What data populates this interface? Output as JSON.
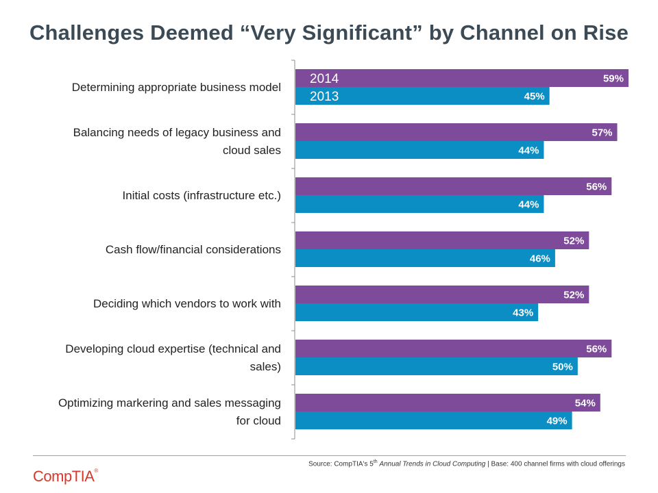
{
  "title": "Challenges Deemed “Very Significant” by Channel on Rise",
  "chart_data": {
    "type": "bar",
    "orientation": "horizontal",
    "title": "Challenges Deemed “Very Significant” by Channel on Rise",
    "categories": [
      [
        "Determining appropriate business model"
      ],
      [
        "Balancing needs of legacy business and",
        "cloud sales"
      ],
      [
        "Initial costs (infrastructure etc.)"
      ],
      [
        "Cash flow/financial considerations"
      ],
      [
        "Deciding which vendors to work with"
      ],
      [
        "Developing cloud expertise (technical and",
        "sales)"
      ],
      [
        "Optimizing markering and sales messaging",
        "for cloud"
      ]
    ],
    "series": [
      {
        "name": "2014",
        "color": "#7e4b9b",
        "values": [
          59,
          57,
          56,
          52,
          52,
          56,
          54
        ]
      },
      {
        "name": "2013",
        "color": "#0b8ec3",
        "values": [
          45,
          44,
          44,
          46,
          43,
          50,
          49
        ]
      }
    ],
    "value_suffix": "%",
    "xlim": [
      0,
      59
    ],
    "xlabel": "",
    "ylabel": "",
    "grid": false,
    "legend": "top-left inside plot"
  },
  "footer": {
    "source_prefix": "Source: CompTIA's 5",
    "source_sup": "th",
    "source_italic": "Annual Trends in Cloud Computing",
    "source_suffix": " | Base: 400 channel firms with cloud offerings"
  },
  "logo": {
    "text": "CompTIA",
    "mark": "®",
    "color": "#d9372b"
  }
}
